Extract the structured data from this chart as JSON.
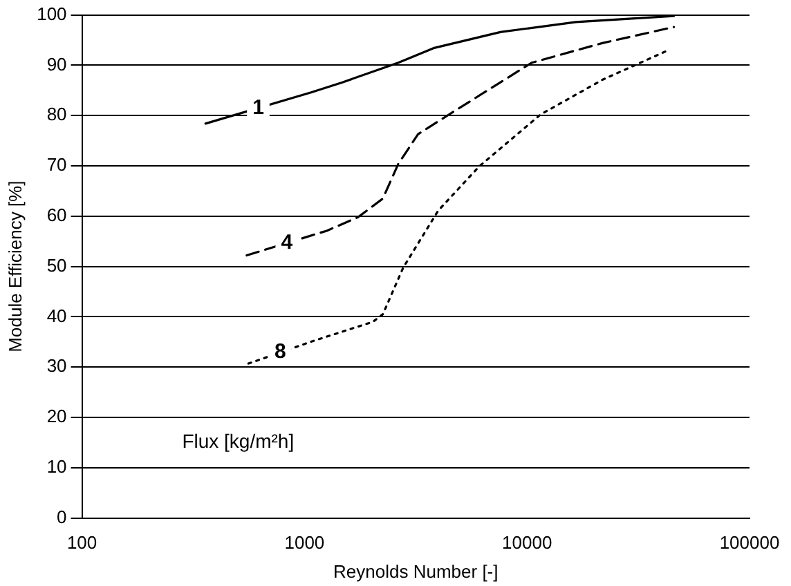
{
  "chart_data": {
    "type": "line",
    "xlabel": "Reynolds Number [-]",
    "ylabel": "Module Efficiency [%]",
    "log": "x",
    "xlim": [
      100,
      100000
    ],
    "xticks": [
      100,
      1000,
      10000,
      100000
    ],
    "ylim": [
      0,
      100
    ],
    "yticks": [
      0,
      10,
      20,
      30,
      40,
      50,
      60,
      70,
      80,
      90,
      100
    ],
    "grid": "y",
    "legend": false,
    "marker": "none",
    "annotations": [
      "Flux [kg/m²h]"
    ],
    "series": [
      {
        "name": "1",
        "color": "#000000",
        "line_style": "solid",
        "x": [
          359,
          1070,
          1480,
          2640,
          3800,
          7600,
          16600,
          45700
        ],
        "values": [
          78.4,
          84.6,
          86.6,
          90.5,
          93.4,
          96.6,
          98.6,
          99.8
        ]
      },
      {
        "name": "4",
        "color": "#000000",
        "line_style": "dashed",
        "x": [
          550,
          1260,
          1740,
          2250,
          2640,
          3240,
          4460,
          10500,
          21800,
          45700
        ],
        "values": [
          52.2,
          57.1,
          59.8,
          63.5,
          70.4,
          76.3,
          80.2,
          90.5,
          94.4,
          97.6
        ]
      },
      {
        "name": "8",
        "color": "#000000",
        "line_style": "dotted",
        "x": [
          560,
          1080,
          2030,
          2250,
          2780,
          3990,
          6100,
          11500,
          21800,
          42700
        ],
        "values": [
          30.7,
          35.1,
          39.0,
          40.5,
          49.8,
          61.1,
          69.9,
          80.2,
          87.1,
          92.9
        ]
      }
    ]
  }
}
